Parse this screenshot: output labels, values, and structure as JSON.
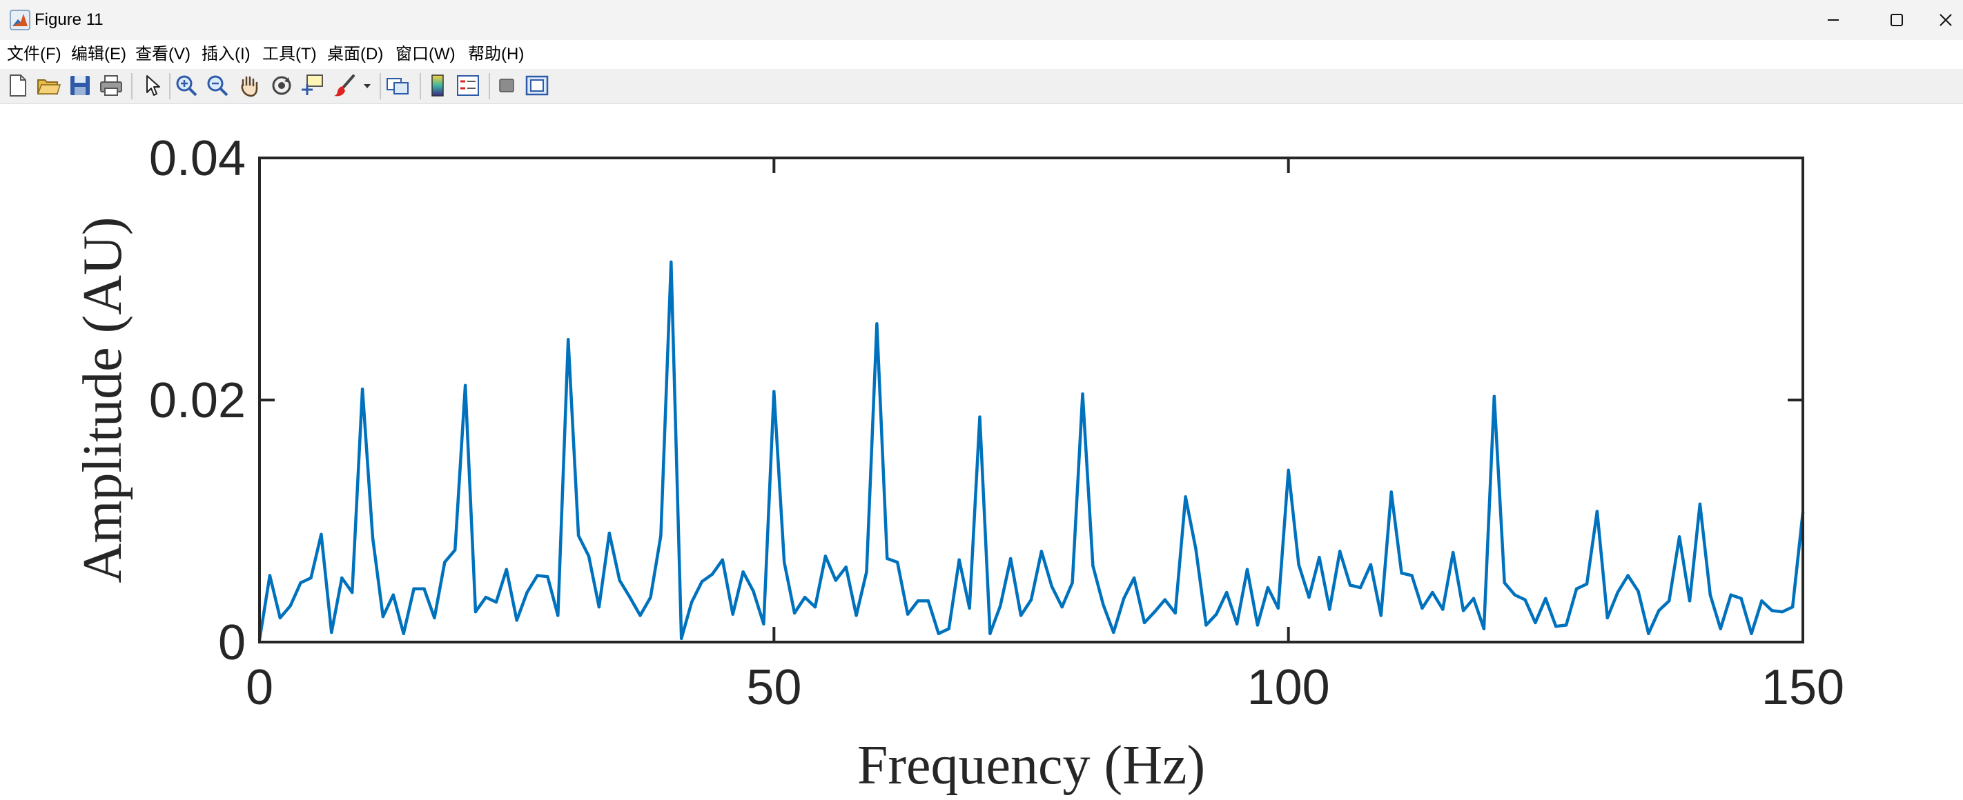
{
  "window": {
    "title": "Figure 11",
    "icon": "matlab-logo-icon",
    "controls": [
      "minimize-icon",
      "maximize-icon",
      "close-icon"
    ]
  },
  "menu": [
    {
      "label": "文件(F)"
    },
    {
      "label": "编辑(E)"
    },
    {
      "label": "查看(V)"
    },
    {
      "label": "插入(I)"
    },
    {
      "label": "工具(T)"
    },
    {
      "label": "桌面(D)"
    },
    {
      "label": "窗口(W)"
    },
    {
      "label": "帮助(H)"
    }
  ],
  "toolbar": [
    "new-figure-icon",
    "open-file-icon",
    "save-icon",
    "print-icon",
    "edit-plot-arrow-icon",
    "zoom-in-icon",
    "zoom-out-icon",
    "pan-hand-icon",
    "rotate-3d-icon",
    "data-cursor-icon",
    "brush-icon",
    "link-plot-icon",
    "insert-colorbar-icon",
    "insert-legend-icon",
    "hide-plot-tools-icon",
    "show-plot-tools-icon"
  ],
  "colors": {
    "line": "#0072BD",
    "axes": "#262626",
    "titlebar": "#f3f3f3",
    "toolbar": "#f0f0f0"
  },
  "chart_data": {
    "type": "line",
    "xlabel": "Frequency (Hz)",
    "ylabel": "Amplitude (AU)",
    "xlim": [
      0,
      150
    ],
    "ylim": [
      0,
      0.04
    ],
    "xticks": [
      0,
      50,
      100,
      150
    ],
    "xtick_labels": [
      "0",
      "50",
      "100",
      "150"
    ],
    "yticks": [
      0,
      0.02,
      0.04
    ],
    "ytick_labels": [
      "0",
      "0.02",
      "0.04"
    ],
    "grid": false,
    "box": true,
    "series": [
      {
        "x": [
          0,
          1,
          2,
          3,
          4,
          5,
          6,
          7,
          8,
          9,
          10,
          11,
          12,
          13,
          14,
          15,
          16,
          17,
          18,
          19,
          20,
          21,
          22,
          23,
          24,
          25,
          26,
          27,
          28,
          29,
          30,
          31,
          32,
          33,
          34,
          35,
          36,
          37,
          38,
          39,
          40,
          41,
          42,
          43,
          44,
          45,
          46,
          47,
          48,
          49,
          50,
          51,
          52,
          53,
          54,
          55,
          56,
          57,
          58,
          59,
          60,
          61,
          62,
          63,
          64,
          65,
          66,
          67,
          68,
          69,
          70,
          71,
          72,
          73,
          74,
          75,
          76,
          77,
          78,
          79,
          80,
          81,
          82,
          83,
          84,
          85,
          86,
          87,
          88,
          89,
          90,
          91,
          92,
          93,
          94,
          95,
          96,
          97,
          98,
          99,
          100,
          101,
          102,
          103,
          104,
          105,
          106,
          107,
          108,
          109,
          110,
          111,
          112,
          113,
          114,
          115,
          116,
          117,
          118,
          119,
          120,
          121,
          122,
          123,
          124,
          125,
          126,
          127,
          128,
          129,
          130,
          131,
          132,
          133,
          134,
          135,
          136,
          137,
          138,
          139,
          140,
          141,
          142,
          143,
          144,
          145,
          146,
          147,
          148,
          149,
          150
        ],
        "y": [
          0.0002,
          0.0055,
          0.002,
          0.003,
          0.0049,
          0.0053,
          0.0089,
          0.0008,
          0.0053,
          0.0041,
          0.0209,
          0.0086,
          0.0021,
          0.0039,
          0.0007,
          0.0044,
          0.0044,
          0.002,
          0.0066,
          0.0076,
          0.0212,
          0.0025,
          0.0037,
          0.0033,
          0.006,
          0.0018,
          0.0041,
          0.0055,
          0.0054,
          0.0022,
          0.025,
          0.0088,
          0.0071,
          0.0029,
          0.009,
          0.0051,
          0.0037,
          0.0022,
          0.0037,
          0.0088,
          0.0314,
          0.0003,
          0.0033,
          0.005,
          0.0056,
          0.0068,
          0.0023,
          0.0058,
          0.0042,
          0.0015,
          0.0207,
          0.0066,
          0.0024,
          0.0037,
          0.0029,
          0.0071,
          0.0051,
          0.0062,
          0.0022,
          0.0058,
          0.0263,
          0.0069,
          0.0066,
          0.0023,
          0.0034,
          0.0034,
          0.0007,
          0.0011,
          0.0068,
          0.0028,
          0.0186,
          0.0007,
          0.003,
          0.0069,
          0.0022,
          0.0035,
          0.0075,
          0.0046,
          0.0029,
          0.0049,
          0.0205,
          0.0063,
          0.0031,
          0.0008,
          0.0036,
          0.0053,
          0.0016,
          0.0025,
          0.0035,
          0.0024,
          0.012,
          0.0077,
          0.0014,
          0.0023,
          0.0041,
          0.0015,
          0.006,
          0.0014,
          0.0045,
          0.0028,
          0.0142,
          0.0064,
          0.0037,
          0.007,
          0.0027,
          0.0075,
          0.0047,
          0.0045,
          0.0064,
          0.0022,
          0.0124,
          0.0057,
          0.0055,
          0.0028,
          0.0041,
          0.0027,
          0.0074,
          0.0026,
          0.0036,
          0.0011,
          0.0203,
          0.0049,
          0.0039,
          0.0035,
          0.0016,
          0.0036,
          0.0013,
          0.0014,
          0.0044,
          0.0048,
          0.0108,
          0.002,
          0.0041,
          0.0055,
          0.0042,
          0.0007,
          0.0026,
          0.0034,
          0.0087,
          0.0034,
          0.0114,
          0.0039,
          0.0011,
          0.0039,
          0.0036,
          0.0007,
          0.0034,
          0.0026,
          0.0025,
          0.0029,
          0.0107
        ]
      }
    ]
  }
}
